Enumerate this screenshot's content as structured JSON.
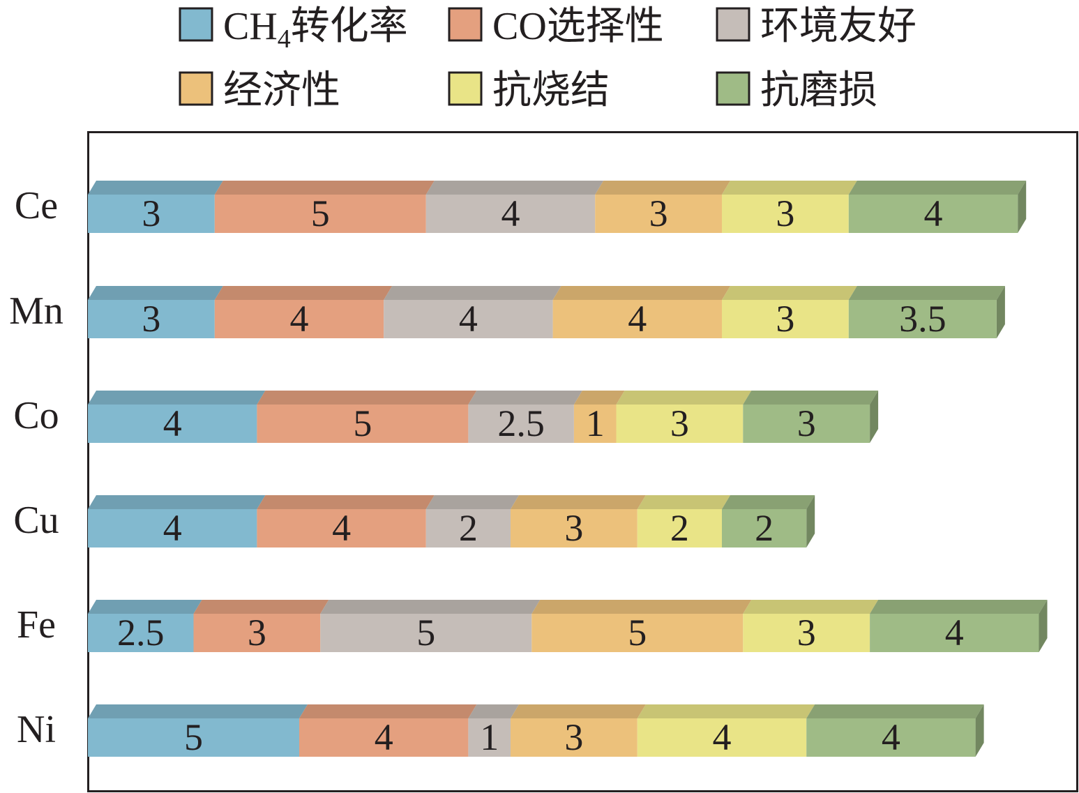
{
  "chart_data": {
    "type": "bar",
    "orientation": "horizontal",
    "stacked": true,
    "style": "3d",
    "categories": [
      "Ce",
      "Mn",
      "Co",
      "Cu",
      "Fe",
      "Ni"
    ],
    "series": [
      {
        "name": "CH₄转化率",
        "name_parts": [
          "CH",
          "4",
          "转化率"
        ],
        "color": "#82b9cf",
        "values": [
          3,
          3,
          4,
          4,
          2.5,
          5
        ]
      },
      {
        "name": "CO选择性",
        "color": "#e4a07f",
        "values": [
          5,
          4,
          5,
          4,
          3,
          4
        ]
      },
      {
        "name": "环境友好",
        "color": "#c5bdb8",
        "values": [
          4,
          4,
          2.5,
          2,
          5,
          1
        ]
      },
      {
        "name": "经济性",
        "color": "#ecc17b",
        "values": [
          3,
          4,
          1,
          3,
          5,
          3
        ]
      },
      {
        "name": "抗烧结",
        "color": "#e9e487",
        "values": [
          3,
          3,
          3,
          2,
          3,
          4
        ]
      },
      {
        "name": "抗磨损",
        "color": "#9fbb86",
        "values": [
          4,
          3.5,
          3,
          2,
          4,
          4
        ]
      }
    ],
    "value_labels": [
      [
        "3",
        "5",
        "4",
        "3",
        "3",
        "4"
      ],
      [
        "3",
        "4",
        "4",
        "4",
        "3",
        "3.5"
      ],
      [
        "4",
        "5",
        "2.5",
        "1",
        "3",
        "3"
      ],
      [
        "4",
        "4",
        "2",
        "3",
        "2",
        "2"
      ],
      [
        "2.5",
        "3",
        "5",
        "5",
        "3",
        "4"
      ],
      [
        "5",
        "4",
        "1",
        "3",
        "4",
        "4"
      ]
    ],
    "legend_position": "top",
    "grid": false
  }
}
